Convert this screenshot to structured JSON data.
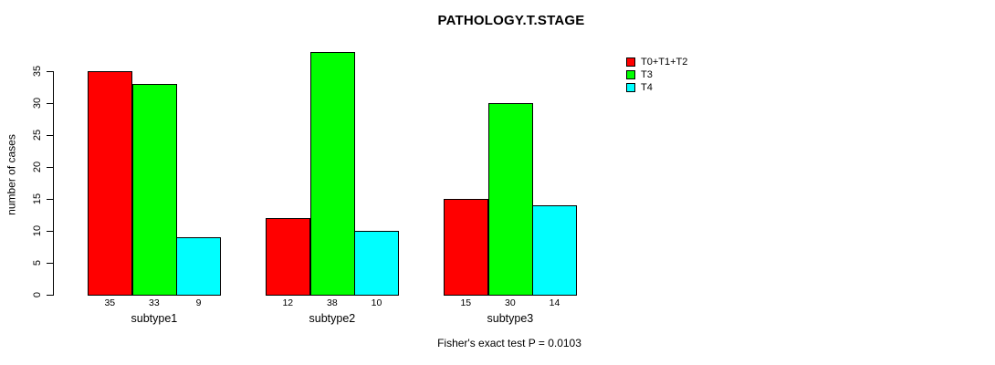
{
  "chart_data": {
    "type": "bar",
    "title": "PATHOLOGY.T.STAGE",
    "ylabel": "number of cases",
    "categories": [
      "subtype1",
      "subtype2",
      "subtype3"
    ],
    "series": [
      {
        "name": "T0+T1+T2",
        "color": "#ff0000",
        "values": [
          35,
          12,
          15
        ]
      },
      {
        "name": "T3",
        "color": "#00ff00",
        "values": [
          33,
          38,
          30
        ]
      },
      {
        "name": "T4",
        "color": "#00ffff",
        "values": [
          9,
          10,
          14
        ]
      }
    ],
    "bar_value_labels": [
      [
        "35",
        "33",
        "9"
      ],
      [
        "12",
        "38",
        "10"
      ],
      [
        "15",
        "30",
        "14"
      ]
    ],
    "yticks": [
      0,
      5,
      10,
      15,
      20,
      25,
      30,
      35
    ],
    "ylim": [
      0,
      38
    ],
    "grid": false,
    "legend_position": "right",
    "annotation": "Fisher's exact test P = 0.0103"
  }
}
